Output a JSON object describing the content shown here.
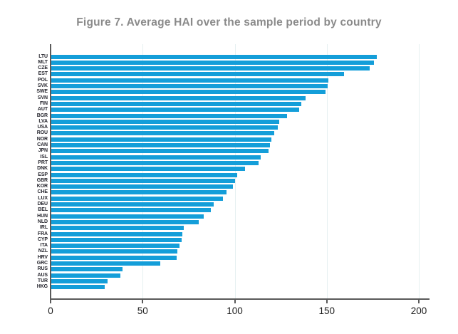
{
  "title": "Figure 7. Average HAI over the sample period by country",
  "colors": {
    "bar": "#149ed9",
    "title": "#8a8a8a",
    "spine": "#5a5a5a",
    "gridline": "#e6f0f1",
    "tick": "#5a5a5a",
    "tick_label": "#1c1c1c",
    "country_label": "#26262e",
    "background": "#ffffff"
  },
  "chart_data": {
    "type": "bar",
    "orientation": "horizontal",
    "title": "Figure 7. Average HAI over the sample period by country",
    "xlabel": "",
    "ylabel": "",
    "xlim": [
      0,
      205
    ],
    "x_ticks": [
      0,
      50,
      100,
      150,
      200
    ],
    "grid": "vertical-faint",
    "legend": "none",
    "categories": [
      "LTU",
      "MLT",
      "CZE",
      "EST",
      "POL",
      "SVK",
      "SWE",
      "SVN",
      "FIN",
      "AUT",
      "BGR",
      "LVA",
      "USA",
      "ROU",
      "NOR",
      "CAN",
      "JPN",
      "ISL",
      "PRT",
      "DNK",
      "ESP",
      "GBR",
      "KOR",
      "CHE",
      "LUX",
      "DEU",
      "BEL",
      "HUN",
      "NLD",
      "IRL",
      "FRA",
      "CYP",
      "ITA",
      "NZL",
      "HRV",
      "GRC",
      "RUS",
      "AUS",
      "TUR",
      "HKG"
    ],
    "values": [
      177,
      175.5,
      173.5,
      159.5,
      151,
      150.5,
      149.5,
      138.5,
      136,
      135,
      128.5,
      124,
      123.5,
      121.5,
      120,
      119,
      118.5,
      114,
      113,
      105.5,
      101.5,
      100,
      99,
      95.5,
      93.5,
      88.5,
      87,
      83,
      80.5,
      72.5,
      71.5,
      71,
      70,
      69,
      68.5,
      59.5,
      39,
      38,
      31,
      29.5
    ]
  }
}
